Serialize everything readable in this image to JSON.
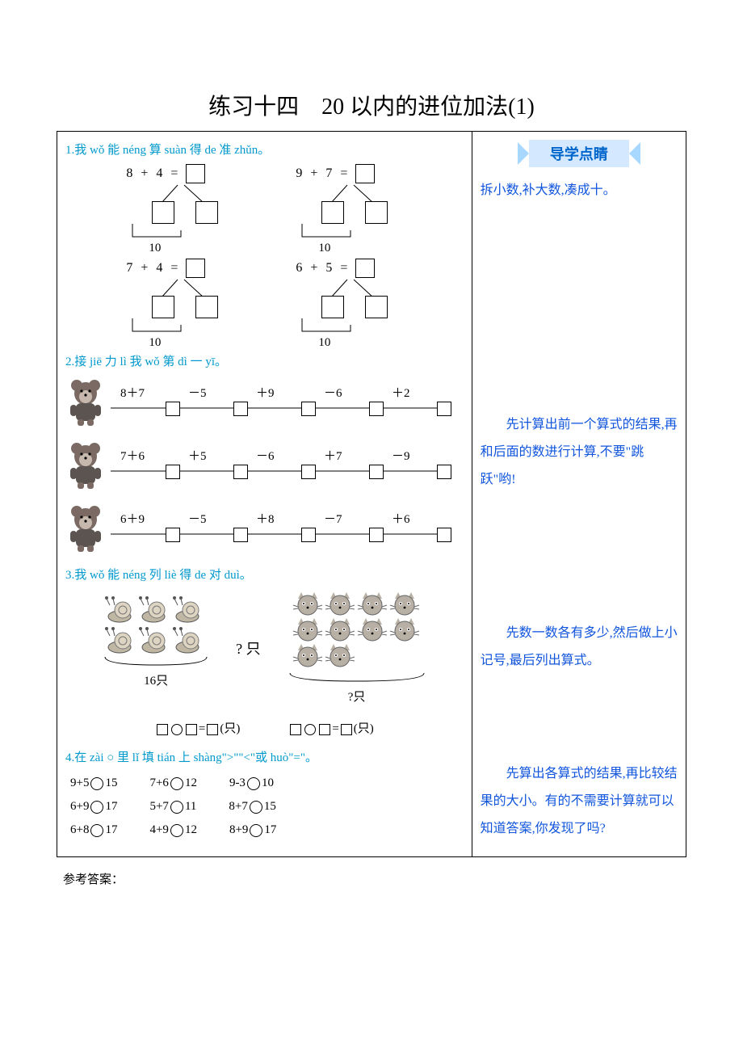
{
  "title": "练习十四　20 以内的进位加法(1)",
  "guide_banner": "导学点睛",
  "q1": {
    "prompt": "1.我 wǒ 能 néng 算 suàn 得 de 准 zhǔn。",
    "trees": [
      {
        "a": "8",
        "op": "+",
        "b": "4",
        "eq": "=",
        "ten": "10"
      },
      {
        "a": "9",
        "op": "+",
        "b": "7",
        "eq": "=",
        "ten": "10"
      },
      {
        "a": "7",
        "op": "+",
        "b": "4",
        "eq": "=",
        "ten": "10"
      },
      {
        "a": "6",
        "op": "+",
        "b": "5",
        "eq": "=",
        "ten": "10"
      }
    ],
    "tip": "拆小数,补大数,凑成十。"
  },
  "q2": {
    "prompt": "2.接 jiē 力 lì 我 wǒ 第 dì 一 yī。",
    "chains": [
      {
        "ops": [
          "8＋7",
          "－5",
          "＋9",
          "－6",
          "＋2"
        ]
      },
      {
        "ops": [
          "7＋6",
          "＋5",
          "－6",
          "＋7",
          "－9"
        ]
      },
      {
        "ops": [
          "6＋9",
          "－5",
          "＋8",
          "－7",
          "＋6"
        ]
      }
    ],
    "tip": "　　先计算出前一个算式的结果,再和后面的数进行计算,不要\"跳跃\"哟!",
    "bear_colors": {
      "body": "#7a6a63",
      "face": "#c7b8ae",
      "shirt": "#5b5450"
    }
  },
  "q3": {
    "prompt": "3.我 wǒ 能 néng 列 liè 得 de 对 duì。",
    "left_count_label": "16只",
    "right_count_label": "?只",
    "question_mark": "? 只",
    "eq_suffix": "(只)",
    "tip": "　　先数一数各有多少,然后做上小记号,最后列出算式。",
    "snail_color": "#bfb7a3",
    "cat_color": "#b8b0a5",
    "snail_rows": 2,
    "snail_cols": 3,
    "cat_rows": 3,
    "cat_cols": 4,
    "cat_missing_last_row": 2
  },
  "q4": {
    "prompt": "4.在 zài ○ 里 lǐ 填 tián 上 shàng\">\"\"<\"或 huò\"=\"。",
    "rows": [
      [
        {
          "l": "9+5",
          "r": "15"
        },
        {
          "l": "7+6",
          "r": "12"
        },
        {
          "l": "9-3",
          "r": "10"
        }
      ],
      [
        {
          "l": "6+9",
          "r": "17"
        },
        {
          "l": "5+7",
          "r": "11"
        },
        {
          "l": "8+7",
          "r": "15"
        }
      ],
      [
        {
          "l": "6+8",
          "r": "17"
        },
        {
          "l": "4+9",
          "r": "12"
        },
        {
          "l": "8+9",
          "r": "17"
        }
      ]
    ],
    "tip": "　　先算出各算式的结果,再比较结果的大小。有的不需要计算就可以知道答案,你发现了吗?"
  },
  "footer": "参考答案："
}
